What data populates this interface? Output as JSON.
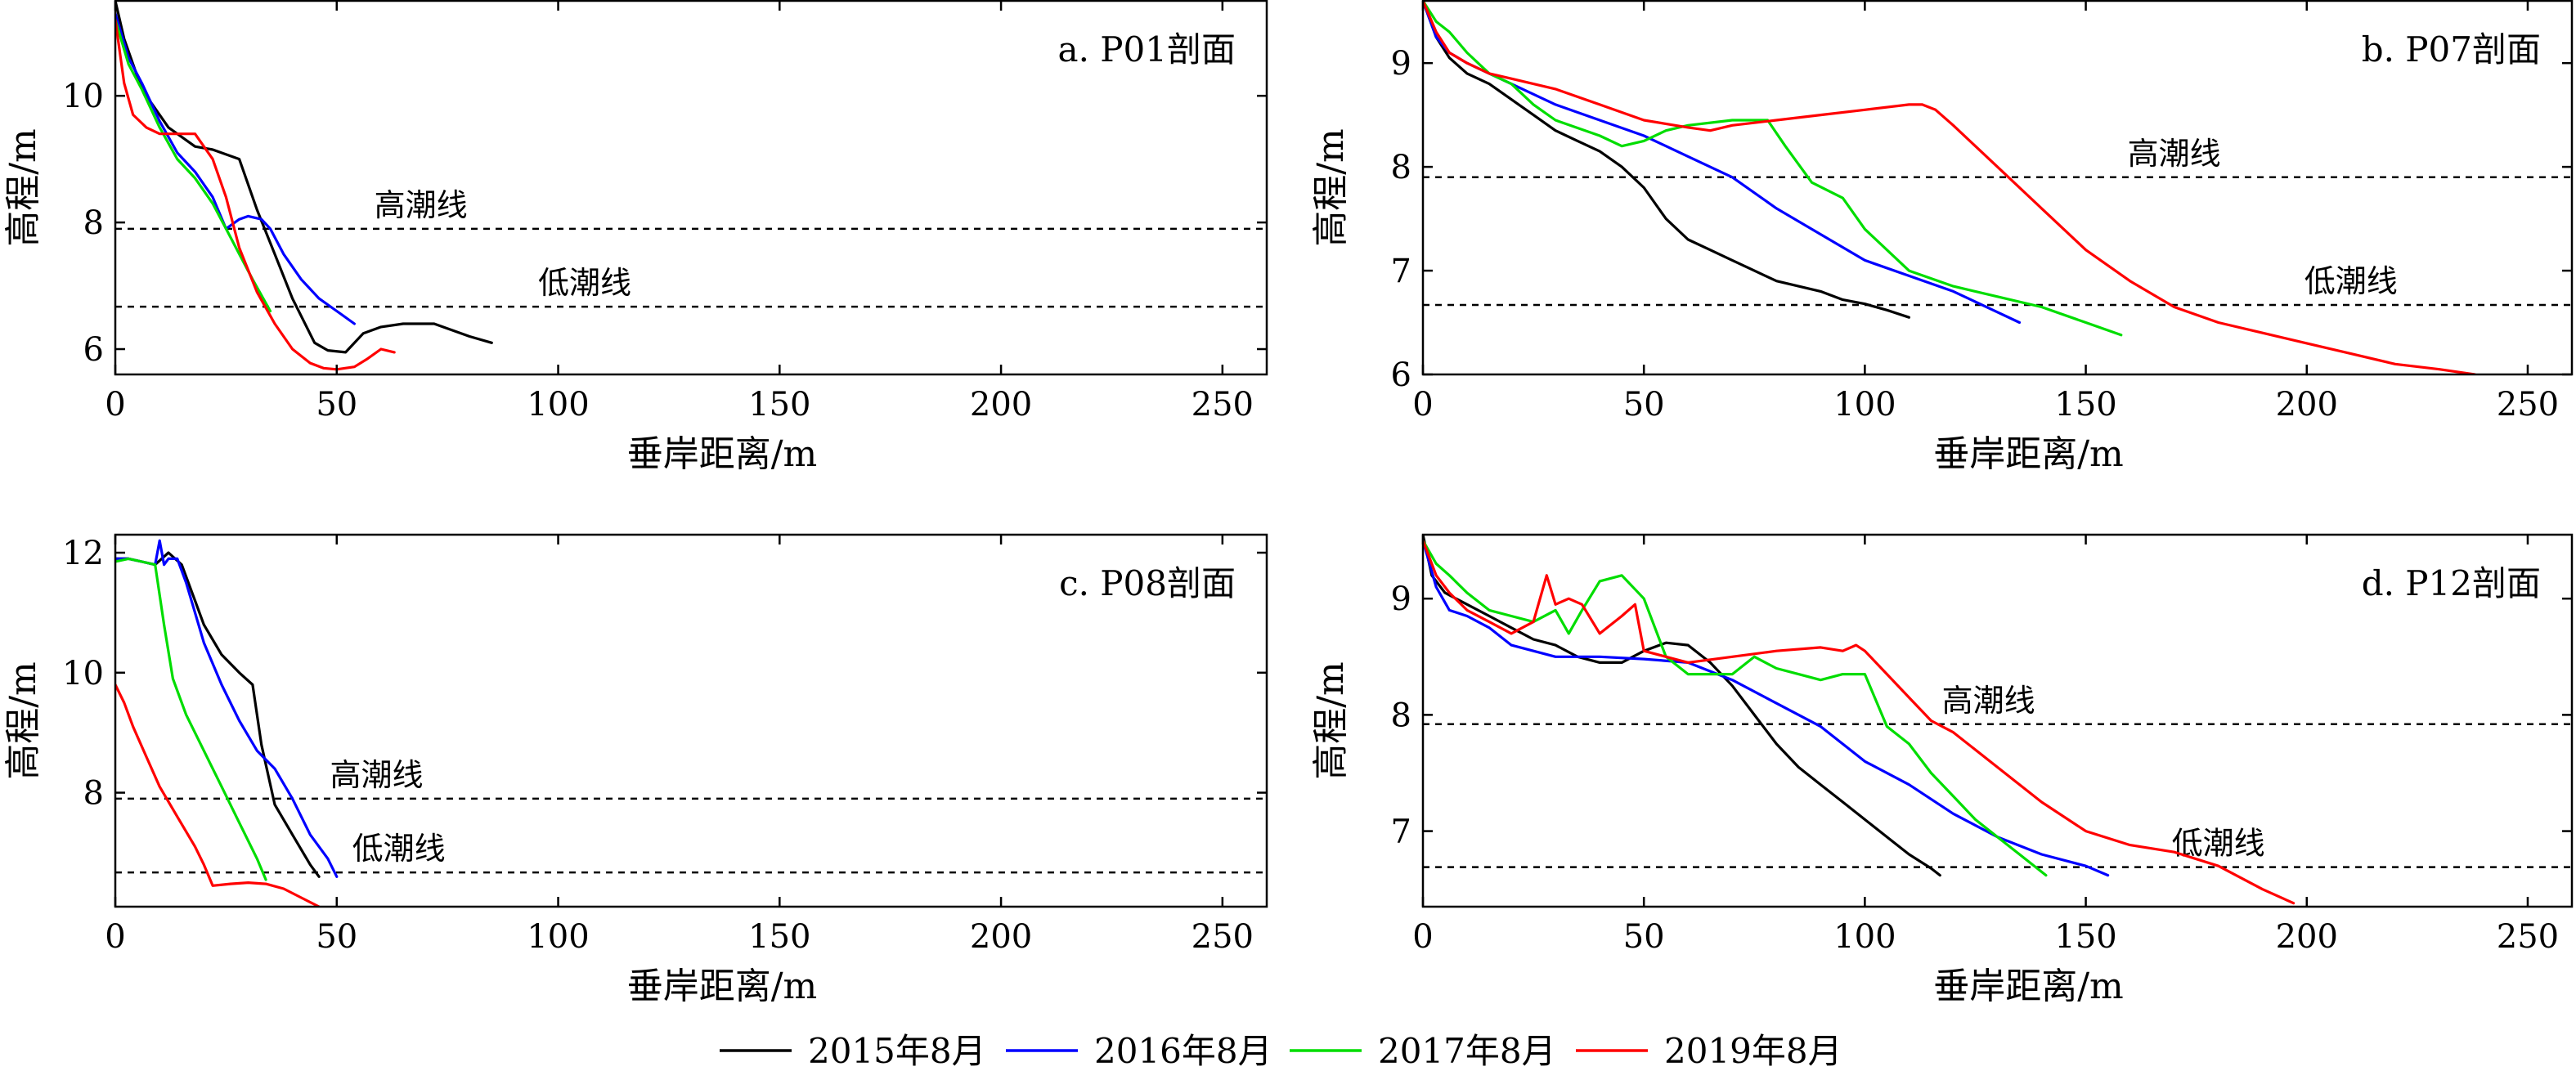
{
  "legend": {
    "items": [
      {
        "name": "2015年8月",
        "color": "#000000"
      },
      {
        "name": "2016年8月",
        "color": "#0000ff"
      },
      {
        "name": "2017年8月",
        "color": "#00dd00"
      },
      {
        "name": "2019年8月",
        "color": "#ff0000"
      }
    ]
  },
  "chart_data": [
    {
      "type": "line",
      "title": "a. P01剖面",
      "xlabel": "垂岸距离/m",
      "ylabel": "高程/m",
      "xlim": [
        0,
        260
      ],
      "ylim": [
        5.6,
        11.5
      ],
      "xticks": [
        0,
        50,
        100,
        150,
        200,
        250
      ],
      "yticks": [
        6,
        8,
        10
      ],
      "grid": false,
      "reference_lines": [
        {
          "label": "高潮线",
          "y": 7.9,
          "label_x": 69
        },
        {
          "label": "低潮线",
          "y": 6.67,
          "label_x": 106
        }
      ],
      "series": [
        {
          "name": "2015年8月",
          "color": "#000000",
          "x": [
            0,
            2,
            5,
            8,
            12,
            18,
            22,
            28,
            32,
            36,
            40,
            45,
            48,
            52,
            56,
            60,
            65,
            72,
            80,
            85
          ],
          "y": [
            11.5,
            10.9,
            10.3,
            9.9,
            9.5,
            9.2,
            9.15,
            9.0,
            8.2,
            7.5,
            6.8,
            6.1,
            5.98,
            5.95,
            6.25,
            6.35,
            6.4,
            6.4,
            6.2,
            6.1
          ]
        },
        {
          "name": "2016年8月",
          "color": "#0000ff",
          "x": [
            0,
            3,
            6,
            10,
            14,
            18,
            22,
            25,
            28,
            30,
            33,
            35,
            38,
            42,
            46,
            50,
            54
          ],
          "y": [
            11.3,
            10.6,
            10.2,
            9.6,
            9.1,
            8.8,
            8.4,
            7.9,
            8.05,
            8.1,
            8.05,
            7.9,
            7.5,
            7.1,
            6.8,
            6.6,
            6.4
          ]
        },
        {
          "name": "2017年8月",
          "color": "#00dd00",
          "x": [
            0,
            3,
            6,
            10,
            14,
            18,
            22,
            25,
            28,
            31,
            35
          ],
          "y": [
            11.2,
            10.5,
            10.1,
            9.5,
            9.0,
            8.7,
            8.3,
            7.9,
            7.5,
            7.1,
            6.6
          ]
        },
        {
          "name": "2019年8月",
          "color": "#ff0000",
          "x": [
            0,
            2,
            4,
            7,
            10,
            14,
            18,
            22,
            25,
            28,
            32,
            36,
            40,
            44,
            47,
            50,
            54,
            57,
            60,
            63
          ],
          "y": [
            11.2,
            10.2,
            9.7,
            9.5,
            9.4,
            9.4,
            9.4,
            9.0,
            8.4,
            7.6,
            6.9,
            6.4,
            6.0,
            5.78,
            5.7,
            5.68,
            5.72,
            5.85,
            6.0,
            5.95
          ]
        }
      ]
    },
    {
      "type": "line",
      "title": "b. P07剖面",
      "xlabel": "垂岸距离/m",
      "ylabel": "高程/m",
      "xlim": [
        0,
        260
      ],
      "ylim": [
        6,
        9.6
      ],
      "xticks": [
        0,
        50,
        100,
        150,
        200,
        250
      ],
      "yticks": [
        6,
        7,
        8,
        9
      ],
      "grid": false,
      "reference_lines": [
        {
          "label": "高潮线",
          "y": 7.9,
          "label_x": 170
        },
        {
          "label": "低潮线",
          "y": 6.67,
          "label_x": 210
        }
      ],
      "series": [
        {
          "name": "2015年8月",
          "color": "#000000",
          "x": [
            0,
            3,
            6,
            10,
            15,
            20,
            25,
            30,
            35,
            40,
            45,
            50,
            55,
            60,
            65,
            70,
            75,
            80,
            85,
            90,
            95,
            100,
            105,
            110
          ],
          "y": [
            9.6,
            9.25,
            9.05,
            8.9,
            8.8,
            8.65,
            8.5,
            8.35,
            8.25,
            8.15,
            8.0,
            7.8,
            7.5,
            7.3,
            7.2,
            7.1,
            7.0,
            6.9,
            6.85,
            6.8,
            6.72,
            6.68,
            6.62,
            6.55
          ]
        },
        {
          "name": "2016年8月",
          "color": "#0000ff",
          "x": [
            0,
            3,
            6,
            10,
            15,
            20,
            30,
            40,
            50,
            60,
            70,
            80,
            90,
            100,
            110,
            120,
            130,
            135
          ],
          "y": [
            9.6,
            9.25,
            9.1,
            9.0,
            8.9,
            8.8,
            8.6,
            8.45,
            8.3,
            8.1,
            7.9,
            7.6,
            7.35,
            7.1,
            6.95,
            6.8,
            6.6,
            6.5
          ]
        },
        {
          "name": "2017年8月",
          "color": "#00dd00",
          "x": [
            0,
            3,
            6,
            10,
            15,
            20,
            25,
            30,
            40,
            45,
            50,
            55,
            60,
            70,
            78,
            82,
            88,
            95,
            100,
            110,
            120,
            130,
            140,
            150,
            158
          ],
          "y": [
            9.6,
            9.4,
            9.3,
            9.1,
            8.9,
            8.8,
            8.6,
            8.45,
            8.3,
            8.2,
            8.25,
            8.35,
            8.4,
            8.45,
            8.45,
            8.2,
            7.85,
            7.7,
            7.4,
            7.0,
            6.85,
            6.75,
            6.65,
            6.5,
            6.38
          ]
        },
        {
          "name": "2019年8月",
          "color": "#ff0000",
          "x": [
            0,
            3,
            6,
            10,
            15,
            20,
            30,
            40,
            50,
            60,
            65,
            70,
            80,
            90,
            100,
            110,
            113,
            116,
            120,
            125,
            130,
            140,
            150,
            160,
            170,
            180,
            190,
            200,
            210,
            220,
            230,
            238
          ],
          "y": [
            9.6,
            9.3,
            9.1,
            9.0,
            8.9,
            8.85,
            8.75,
            8.6,
            8.45,
            8.38,
            8.35,
            8.4,
            8.45,
            8.5,
            8.55,
            8.6,
            8.6,
            8.55,
            8.4,
            8.2,
            8.0,
            7.6,
            7.2,
            6.9,
            6.65,
            6.5,
            6.4,
            6.3,
            6.2,
            6.1,
            6.05,
            6.0
          ]
        }
      ]
    },
    {
      "type": "line",
      "title": "c. P08剖面",
      "xlabel": "垂岸距离/m",
      "ylabel": "高程/m",
      "xlim": [
        0,
        260
      ],
      "ylim": [
        6.1,
        12.3
      ],
      "xticks": [
        0,
        50,
        100,
        150,
        200,
        250
      ],
      "yticks": [
        8,
        10,
        12
      ],
      "grid": false,
      "reference_lines": [
        {
          "label": "高潮线",
          "y": 7.9,
          "label_x": 59
        },
        {
          "label": "低潮线",
          "y": 6.67,
          "label_x": 64
        }
      ],
      "series": [
        {
          "name": "2015年8月",
          "color": "#000000",
          "x": [
            0,
            3,
            6,
            9,
            12,
            15,
            18,
            20,
            24,
            28,
            31,
            33,
            36,
            40,
            44,
            46
          ],
          "y": [
            11.9,
            11.9,
            11.85,
            11.8,
            12.0,
            11.8,
            11.2,
            10.8,
            10.3,
            10.0,
            9.8,
            8.8,
            7.8,
            7.3,
            6.8,
            6.6
          ]
        },
        {
          "name": "2016年8月",
          "color": "#0000ff",
          "x": [
            0,
            3,
            6,
            9,
            10,
            11,
            12,
            14,
            16,
            18,
            20,
            24,
            28,
            32,
            36,
            40,
            44,
            48,
            50
          ],
          "y": [
            11.9,
            11.9,
            11.85,
            11.8,
            12.2,
            11.8,
            11.9,
            11.9,
            11.5,
            11.0,
            10.5,
            9.8,
            9.2,
            8.7,
            8.4,
            7.9,
            7.3,
            6.9,
            6.6
          ]
        },
        {
          "name": "2017年8月",
          "color": "#00dd00",
          "x": [
            0,
            3,
            6,
            9,
            11,
            13,
            16,
            20,
            24,
            28,
            32,
            34
          ],
          "y": [
            11.85,
            11.9,
            11.85,
            11.8,
            10.8,
            9.9,
            9.3,
            8.7,
            8.1,
            7.5,
            6.9,
            6.55
          ]
        },
        {
          "name": "2019年8月",
          "color": "#ff0000",
          "x": [
            0,
            2,
            4,
            7,
            10,
            14,
            18,
            20,
            22,
            26,
            30,
            34,
            38,
            42,
            46
          ],
          "y": [
            9.8,
            9.5,
            9.1,
            8.6,
            8.1,
            7.6,
            7.1,
            6.8,
            6.45,
            6.48,
            6.5,
            6.48,
            6.4,
            6.25,
            6.1
          ]
        }
      ]
    },
    {
      "type": "line",
      "title": "d. P12剖面",
      "xlabel": "垂岸距离/m",
      "ylabel": "高程/m",
      "xlim": [
        0,
        260
      ],
      "ylim": [
        6.35,
        9.55
      ],
      "xticks": [
        0,
        50,
        100,
        150,
        200,
        250
      ],
      "yticks": [
        7,
        8,
        9
      ],
      "grid": false,
      "reference_lines": [
        {
          "label": "高潮线",
          "y": 7.92,
          "label_x": 128
        },
        {
          "label": "低潮线",
          "y": 6.69,
          "label_x": 180
        }
      ],
      "series": [
        {
          "name": "2015年8月",
          "color": "#000000",
          "x": [
            0,
            2,
            5,
            10,
            15,
            20,
            25,
            30,
            35,
            40,
            45,
            50,
            55,
            60,
            65,
            70,
            75,
            80,
            85,
            90,
            95,
            100,
            105,
            110,
            115,
            117
          ],
          "y": [
            9.55,
            9.2,
            9.05,
            8.95,
            8.85,
            8.75,
            8.65,
            8.6,
            8.5,
            8.45,
            8.45,
            8.55,
            8.62,
            8.6,
            8.45,
            8.25,
            8.0,
            7.75,
            7.55,
            7.4,
            7.25,
            7.1,
            6.95,
            6.8,
            6.68,
            6.62
          ]
        },
        {
          "name": "2016年8月",
          "color": "#0000ff",
          "x": [
            0,
            3,
            6,
            10,
            15,
            20,
            25,
            30,
            40,
            50,
            60,
            70,
            80,
            90,
            100,
            110,
            120,
            130,
            140,
            150,
            155
          ],
          "y": [
            9.5,
            9.1,
            8.9,
            8.85,
            8.75,
            8.6,
            8.55,
            8.5,
            8.5,
            8.48,
            8.45,
            8.3,
            8.1,
            7.9,
            7.6,
            7.4,
            7.15,
            6.95,
            6.8,
            6.7,
            6.62
          ]
        },
        {
          "name": "2017年8月",
          "color": "#00dd00",
          "x": [
            0,
            3,
            6,
            10,
            15,
            20,
            25,
            30,
            33,
            36,
            40,
            45,
            50,
            55,
            60,
            70,
            75,
            80,
            85,
            90,
            95,
            100,
            105,
            110,
            115,
            120,
            125,
            130,
            135,
            141
          ],
          "y": [
            9.5,
            9.3,
            9.2,
            9.05,
            8.9,
            8.85,
            8.8,
            8.9,
            8.7,
            8.9,
            9.15,
            9.2,
            9.0,
            8.5,
            8.35,
            8.35,
            8.5,
            8.4,
            8.35,
            8.3,
            8.35,
            8.35,
            7.9,
            7.75,
            7.5,
            7.3,
            7.1,
            6.95,
            6.8,
            6.62
          ]
        },
        {
          "name": "2019年8月",
          "color": "#ff0000",
          "x": [
            0,
            3,
            6,
            10,
            15,
            20,
            25,
            28,
            30,
            33,
            36,
            40,
            45,
            48,
            50,
            55,
            60,
            70,
            80,
            90,
            95,
            98,
            100,
            105,
            110,
            115,
            120,
            130,
            140,
            150,
            160,
            170,
            180,
            190,
            197
          ],
          "y": [
            9.5,
            9.2,
            9.05,
            8.9,
            8.8,
            8.7,
            8.8,
            9.2,
            8.95,
            9.0,
            8.95,
            8.7,
            8.85,
            8.95,
            8.55,
            8.5,
            8.45,
            8.5,
            8.55,
            8.58,
            8.55,
            8.6,
            8.55,
            8.35,
            8.15,
            7.95,
            7.85,
            7.55,
            7.25,
            7.0,
            6.88,
            6.82,
            6.7,
            6.5,
            6.38
          ]
        }
      ]
    }
  ]
}
